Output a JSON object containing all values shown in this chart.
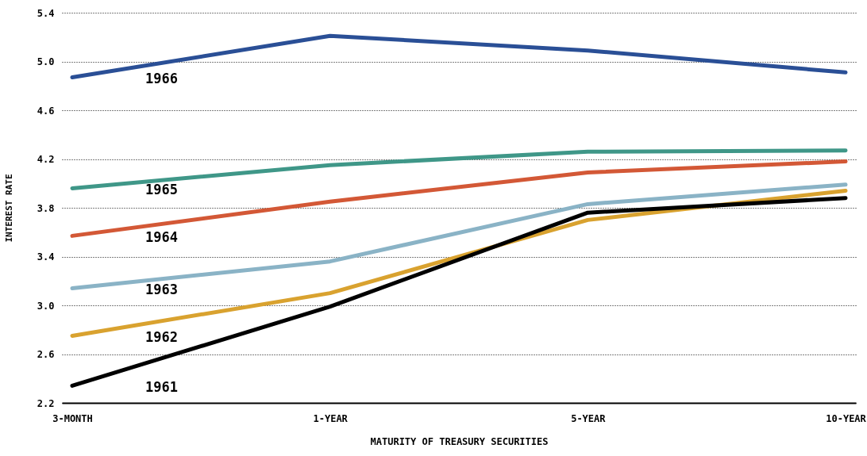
{
  "chart_data": {
    "type": "line",
    "xlabel": "MATURITY OF TREASURY SECURITIES",
    "ylabel": "INTEREST RATE",
    "categories": [
      "3-MONTH",
      "1-YEAR",
      "5-YEAR",
      "10-YEAR"
    ],
    "ylim": [
      2.2,
      5.4
    ],
    "yticks": [
      2.2,
      2.6,
      {
        "value": 3.0,
        "label": "3.0"
      },
      3.4,
      3.8,
      4.2,
      4.6,
      {
        "value": 5.0,
        "label": "5.0"
      },
      5.4
    ],
    "grid": "y",
    "marker": "none",
    "line_style": "solid",
    "series": [
      {
        "name": "1966",
        "color": "#2a4f96",
        "values": [
          4.87,
          5.21,
          5.09,
          4.91
        ]
      },
      {
        "name": "1965",
        "color": "#3f9788",
        "values": [
          3.96,
          4.15,
          4.26,
          4.27
        ]
      },
      {
        "name": "1964",
        "color": "#d35836",
        "values": [
          3.57,
          3.85,
          4.09,
          4.18
        ]
      },
      {
        "name": "1963",
        "color": "#8ab3c6",
        "values": [
          3.14,
          3.36,
          3.83,
          3.99
        ]
      },
      {
        "name": "1962",
        "color": "#d9a22f",
        "values": [
          2.75,
          3.1,
          3.7,
          3.94
        ]
      },
      {
        "name": "1961",
        "color": "#000000",
        "values": [
          2.34,
          2.99,
          3.76,
          3.88
        ]
      }
    ]
  }
}
